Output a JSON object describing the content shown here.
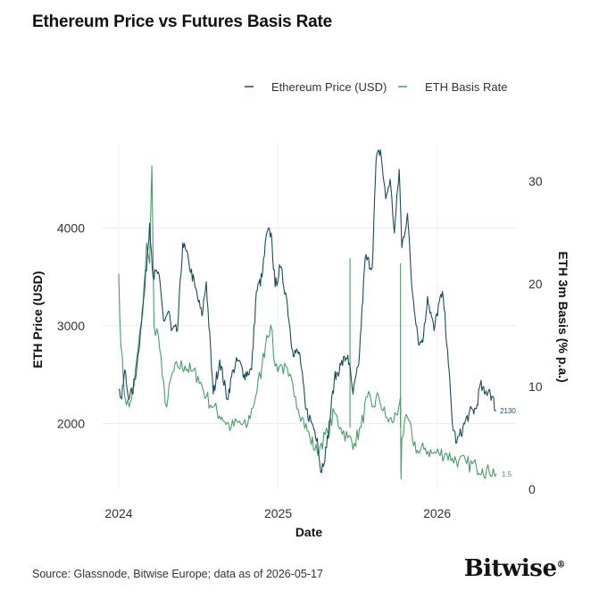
{
  "title": "Ethereum Price vs Futures Basis Rate",
  "footer": {
    "source": "Source: Glassnode, Bitwise Europe; data as of 2026-05-17",
    "brand": "Bitwise",
    "brand_mark": "®"
  },
  "chart_data": {
    "type": "line",
    "xlabel": "Date",
    "ylabel_left": "ETH Price (USD)",
    "ylabel_right": "ETH 3m Basis (% p.a.)",
    "x_ticks": [
      "2024",
      "2025",
      "2026"
    ],
    "x_range": [
      "2024-01-01",
      "2026-05-17"
    ],
    "ylim_left": [
      1400,
      4900
    ],
    "ylim_right": [
      0,
      32
    ],
    "y_ticks_left": [
      2000,
      3000,
      4000
    ],
    "y_ticks_right": [
      0,
      10,
      20,
      30
    ],
    "grid": true,
    "legend_position": "top-right",
    "colors": {
      "price": "#1b4d5c",
      "basis": "#4a9e6b"
    },
    "series": [
      {
        "name": "Ethereum Price (USD)",
        "axis": "left",
        "end_label": "2130",
        "points": [
          [
            "2024-01-01",
            2350
          ],
          [
            "2024-01-08",
            2250
          ],
          [
            "2024-01-15",
            2550
          ],
          [
            "2024-01-22",
            2300
          ],
          [
            "2024-02-01",
            2300
          ],
          [
            "2024-02-12",
            2600
          ],
          [
            "2024-02-20",
            2950
          ],
          [
            "2024-03-01",
            3400
          ],
          [
            "2024-03-12",
            4050
          ],
          [
            "2024-03-20",
            3500
          ],
          [
            "2024-04-01",
            3550
          ],
          [
            "2024-04-13",
            3050
          ],
          [
            "2024-04-25",
            3150
          ],
          [
            "2024-05-01",
            2950
          ],
          [
            "2024-05-15",
            2950
          ],
          [
            "2024-05-27",
            3850
          ],
          [
            "2024-06-10",
            3650
          ],
          [
            "2024-06-24",
            3400
          ],
          [
            "2024-07-10",
            3100
          ],
          [
            "2024-07-20",
            3450
          ],
          [
            "2024-08-05",
            2300
          ],
          [
            "2024-08-20",
            2650
          ],
          [
            "2024-09-06",
            2250
          ],
          [
            "2024-09-20",
            2550
          ],
          [
            "2024-10-01",
            2650
          ],
          [
            "2024-10-15",
            2500
          ],
          [
            "2024-11-01",
            2550
          ],
          [
            "2024-11-12",
            3350
          ],
          [
            "2024-11-25",
            3500
          ],
          [
            "2024-12-06",
            3950
          ],
          [
            "2024-12-16",
            3950
          ],
          [
            "2024-12-25",
            3400
          ],
          [
            "2025-01-06",
            3600
          ],
          [
            "2025-01-20",
            3300
          ],
          [
            "2025-02-03",
            2750
          ],
          [
            "2025-02-20",
            2700
          ],
          [
            "2025-03-05",
            2150
          ],
          [
            "2025-03-20",
            2000
          ],
          [
            "2025-04-01",
            1850
          ],
          [
            "2025-04-09",
            1500
          ],
          [
            "2025-04-22",
            1750
          ],
          [
            "2025-05-10",
            2450
          ],
          [
            "2025-05-25",
            2600
          ],
          [
            "2025-06-10",
            2700
          ],
          [
            "2025-06-22",
            2300
          ],
          [
            "2025-07-05",
            2600
          ],
          [
            "2025-07-20",
            3700
          ],
          [
            "2025-08-05",
            3600
          ],
          [
            "2025-08-14",
            4700
          ],
          [
            "2025-08-24",
            4800
          ],
          [
            "2025-09-05",
            4300
          ],
          [
            "2025-09-15",
            4500
          ],
          [
            "2025-09-25",
            3950
          ],
          [
            "2025-10-06",
            4600
          ],
          [
            "2025-10-12",
            3800
          ],
          [
            "2025-10-25",
            4150
          ],
          [
            "2025-11-04",
            3400
          ],
          [
            "2025-11-21",
            2800
          ],
          [
            "2025-12-01",
            2900
          ],
          [
            "2025-12-10",
            3300
          ],
          [
            "2025-12-25",
            2950
          ],
          [
            "2026-01-06",
            3250
          ],
          [
            "2026-01-15",
            3300
          ],
          [
            "2026-01-25",
            2750
          ],
          [
            "2026-02-05",
            2000
          ],
          [
            "2026-02-15",
            1800
          ],
          [
            "2026-03-01",
            1950
          ],
          [
            "2026-03-15",
            2100
          ],
          [
            "2026-04-01",
            2150
          ],
          [
            "2026-04-10",
            2400
          ],
          [
            "2026-04-20",
            2300
          ],
          [
            "2026-05-01",
            2350
          ],
          [
            "2026-05-17",
            2130
          ]
        ]
      },
      {
        "name": "ETH Basis Rate",
        "axis": "right",
        "end_label": "1.5",
        "points": [
          [
            "2024-01-01",
            21
          ],
          [
            "2024-01-06",
            14
          ],
          [
            "2024-01-15",
            9
          ],
          [
            "2024-01-25",
            8
          ],
          [
            "2024-02-05",
            10
          ],
          [
            "2024-02-15",
            14
          ],
          [
            "2024-02-25",
            17
          ],
          [
            "2024-03-05",
            24
          ],
          [
            "2024-03-12",
            22
          ],
          [
            "2024-03-17",
            31.5
          ],
          [
            "2024-03-22",
            16
          ],
          [
            "2024-04-01",
            15
          ],
          [
            "2024-04-10",
            11
          ],
          [
            "2024-04-20",
            8
          ],
          [
            "2024-05-01",
            11
          ],
          [
            "2024-05-15",
            12
          ],
          [
            "2024-06-01",
            12
          ],
          [
            "2024-06-15",
            11.5
          ],
          [
            "2024-07-01",
            11
          ],
          [
            "2024-07-20",
            9
          ],
          [
            "2024-08-05",
            8
          ],
          [
            "2024-08-25",
            7
          ],
          [
            "2024-09-15",
            6
          ],
          [
            "2024-10-01",
            6.5
          ],
          [
            "2024-10-20",
            6
          ],
          [
            "2024-11-10",
            9
          ],
          [
            "2024-11-25",
            12
          ],
          [
            "2024-12-06",
            15
          ],
          [
            "2024-12-15",
            16
          ],
          [
            "2024-12-25",
            12
          ],
          [
            "2025-01-10",
            12
          ],
          [
            "2025-01-25",
            11
          ],
          [
            "2025-02-10",
            9
          ],
          [
            "2025-02-25",
            7
          ],
          [
            "2025-03-15",
            5
          ],
          [
            "2025-04-01",
            3.5
          ],
          [
            "2025-04-10",
            4.5
          ],
          [
            "2025-04-25",
            5.5
          ],
          [
            "2025-05-10",
            7.5
          ],
          [
            "2025-05-25",
            6
          ],
          [
            "2025-06-10",
            5
          ],
          [
            "2025-06-25",
            4.5
          ],
          [
            "2025-07-10",
            6
          ],
          [
            "2025-07-25",
            9
          ],
          [
            "2025-08-05",
            8
          ],
          [
            "2025-08-20",
            9
          ],
          [
            "2025-09-05",
            7
          ],
          [
            "2025-09-20",
            6.5
          ],
          [
            "2025-10-05",
            8
          ],
          [
            "2025-10-09",
            9
          ],
          [
            "2025-10-10",
            1
          ],
          [
            "2025-10-12",
            5
          ],
          [
            "2025-10-25",
            7
          ],
          [
            "2025-11-05",
            5
          ],
          [
            "2025-11-20",
            3.5
          ],
          [
            "2025-12-05",
            4
          ],
          [
            "2025-12-20",
            3.5
          ],
          [
            "2026-01-05",
            3.5
          ],
          [
            "2026-01-20",
            3.5
          ],
          [
            "2026-02-05",
            3
          ],
          [
            "2026-02-20",
            2.8
          ],
          [
            "2026-03-10",
            2.5
          ],
          [
            "2026-04-01",
            2.2
          ],
          [
            "2026-04-15",
            2
          ],
          [
            "2026-05-01",
            1.6
          ],
          [
            "2026-05-10",
            2
          ],
          [
            "2026-05-17",
            1.5
          ]
        ],
        "spikes": [
          [
            "2025-06-15",
            22.5
          ],
          [
            "2025-10-09",
            22
          ]
        ]
      }
    ]
  }
}
